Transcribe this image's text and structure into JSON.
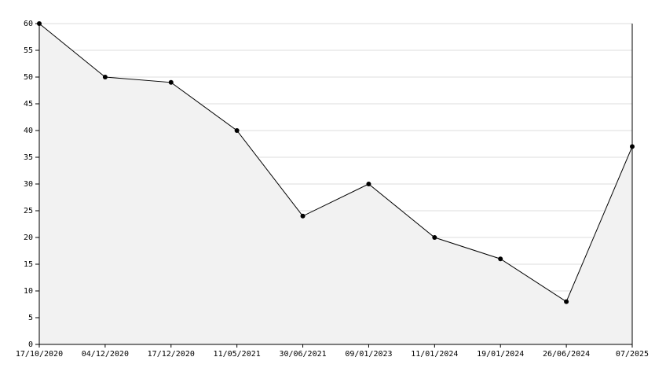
{
  "chart_data": {
    "type": "area",
    "categories": [
      "17/10/2020",
      "04/12/2020",
      "17/12/2020",
      "11/05/2021",
      "30/06/2021",
      "09/01/2023",
      "11/01/2024",
      "19/01/2024",
      "26/06/2024",
      "07/2025"
    ],
    "values": [
      60,
      50,
      49,
      40,
      24,
      30,
      20,
      16,
      8,
      37
    ],
    "color": "#000000",
    "fill_color": "#f2f2f2",
    "ylim": [
      0,
      60
    ],
    "yticks": [
      0,
      5,
      10,
      15,
      20,
      25,
      30,
      35,
      40,
      45,
      50,
      55,
      60
    ],
    "grid": true
  }
}
